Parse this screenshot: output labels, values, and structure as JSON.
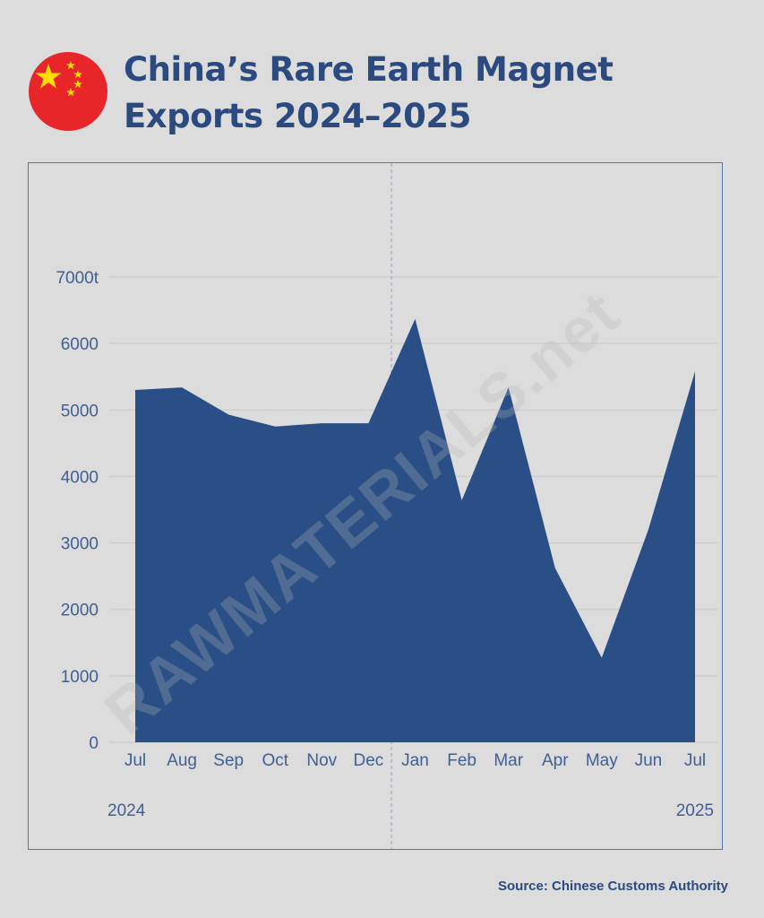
{
  "header": {
    "title_line1": "China’s Rare Earth Magnet",
    "title_line2": "Exports 2024–2025"
  },
  "footer": {
    "source": "Source: Chinese Customs Authority"
  },
  "colors": {
    "accent": "#2a4f86",
    "title": "#2a4a80",
    "background": "#dcdcdc",
    "flag_red": "#e8262a",
    "flag_star": "#ffde00"
  },
  "icons": {
    "flag": "china-flag-icon"
  },
  "chart_data": {
    "type": "area",
    "title": "China’s Rare Earth Magnet Exports 2024–2025",
    "categories": [
      "Jul",
      "Aug",
      "Sep",
      "Oct",
      "Nov",
      "Dec",
      "Jan",
      "Feb",
      "Mar",
      "Apr",
      "May",
      "Jun",
      "Jul"
    ],
    "values": [
      5300,
      5340,
      4930,
      4750,
      4800,
      4800,
      6370,
      3640,
      5340,
      2620,
      1270,
      3200,
      5580
    ],
    "y_ticks": [
      "0",
      "1000",
      "2000",
      "3000",
      "4000",
      "5000",
      "6000",
      "7000t"
    ],
    "ylim": [
      0,
      7000
    ],
    "year_labels": {
      "start": "2024",
      "end": "2025"
    },
    "xlabel": "",
    "ylabel": "",
    "grid": true,
    "divider_after": "Dec",
    "watermark": "RAWMATERIALS.net"
  }
}
